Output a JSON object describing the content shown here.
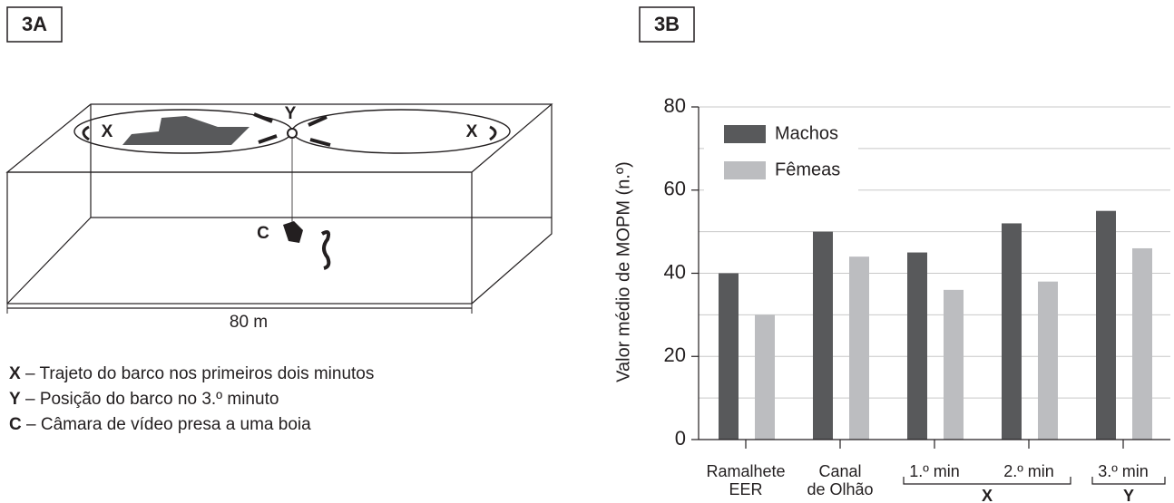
{
  "panel_a": {
    "label": "3A",
    "marks": {
      "x_left": "X",
      "y": "Y",
      "x_right": "X",
      "c": "C"
    },
    "scale": "80 m",
    "legend": [
      {
        "key": "X",
        "text": "– Trajeto do barco nos primeiros dois minutos"
      },
      {
        "key": "Y",
        "text": "– Posição do barco no 3.º minuto"
      },
      {
        "key": "C",
        "text": "– Câmara de vídeo presa a uma boia"
      }
    ]
  },
  "chart_data": {
    "type": "bar",
    "label": "3B",
    "ylabel": "Valor médio de MOPM (n.º)",
    "categories": [
      [
        "Ramalhete",
        "EER"
      ],
      [
        "Canal",
        "de Olhão"
      ],
      [
        "1.º min"
      ],
      [
        "2.º min"
      ],
      [
        "3.º min"
      ]
    ],
    "group_labels": [
      "X",
      "Y"
    ],
    "series": [
      {
        "name": "Machos",
        "color": "#58595b",
        "values": [
          40,
          50,
          45,
          52,
          55
        ]
      },
      {
        "name": "Fêmeas",
        "color": "#bcbdc0",
        "values": [
          30,
          44,
          36,
          38,
          46
        ]
      }
    ],
    "ylim": [
      0,
      80
    ],
    "yticks": [
      0,
      20,
      40,
      60,
      80
    ],
    "minor_gridlines": [
      10,
      30,
      50,
      70
    ],
    "grid": true,
    "legend": "top-left"
  }
}
